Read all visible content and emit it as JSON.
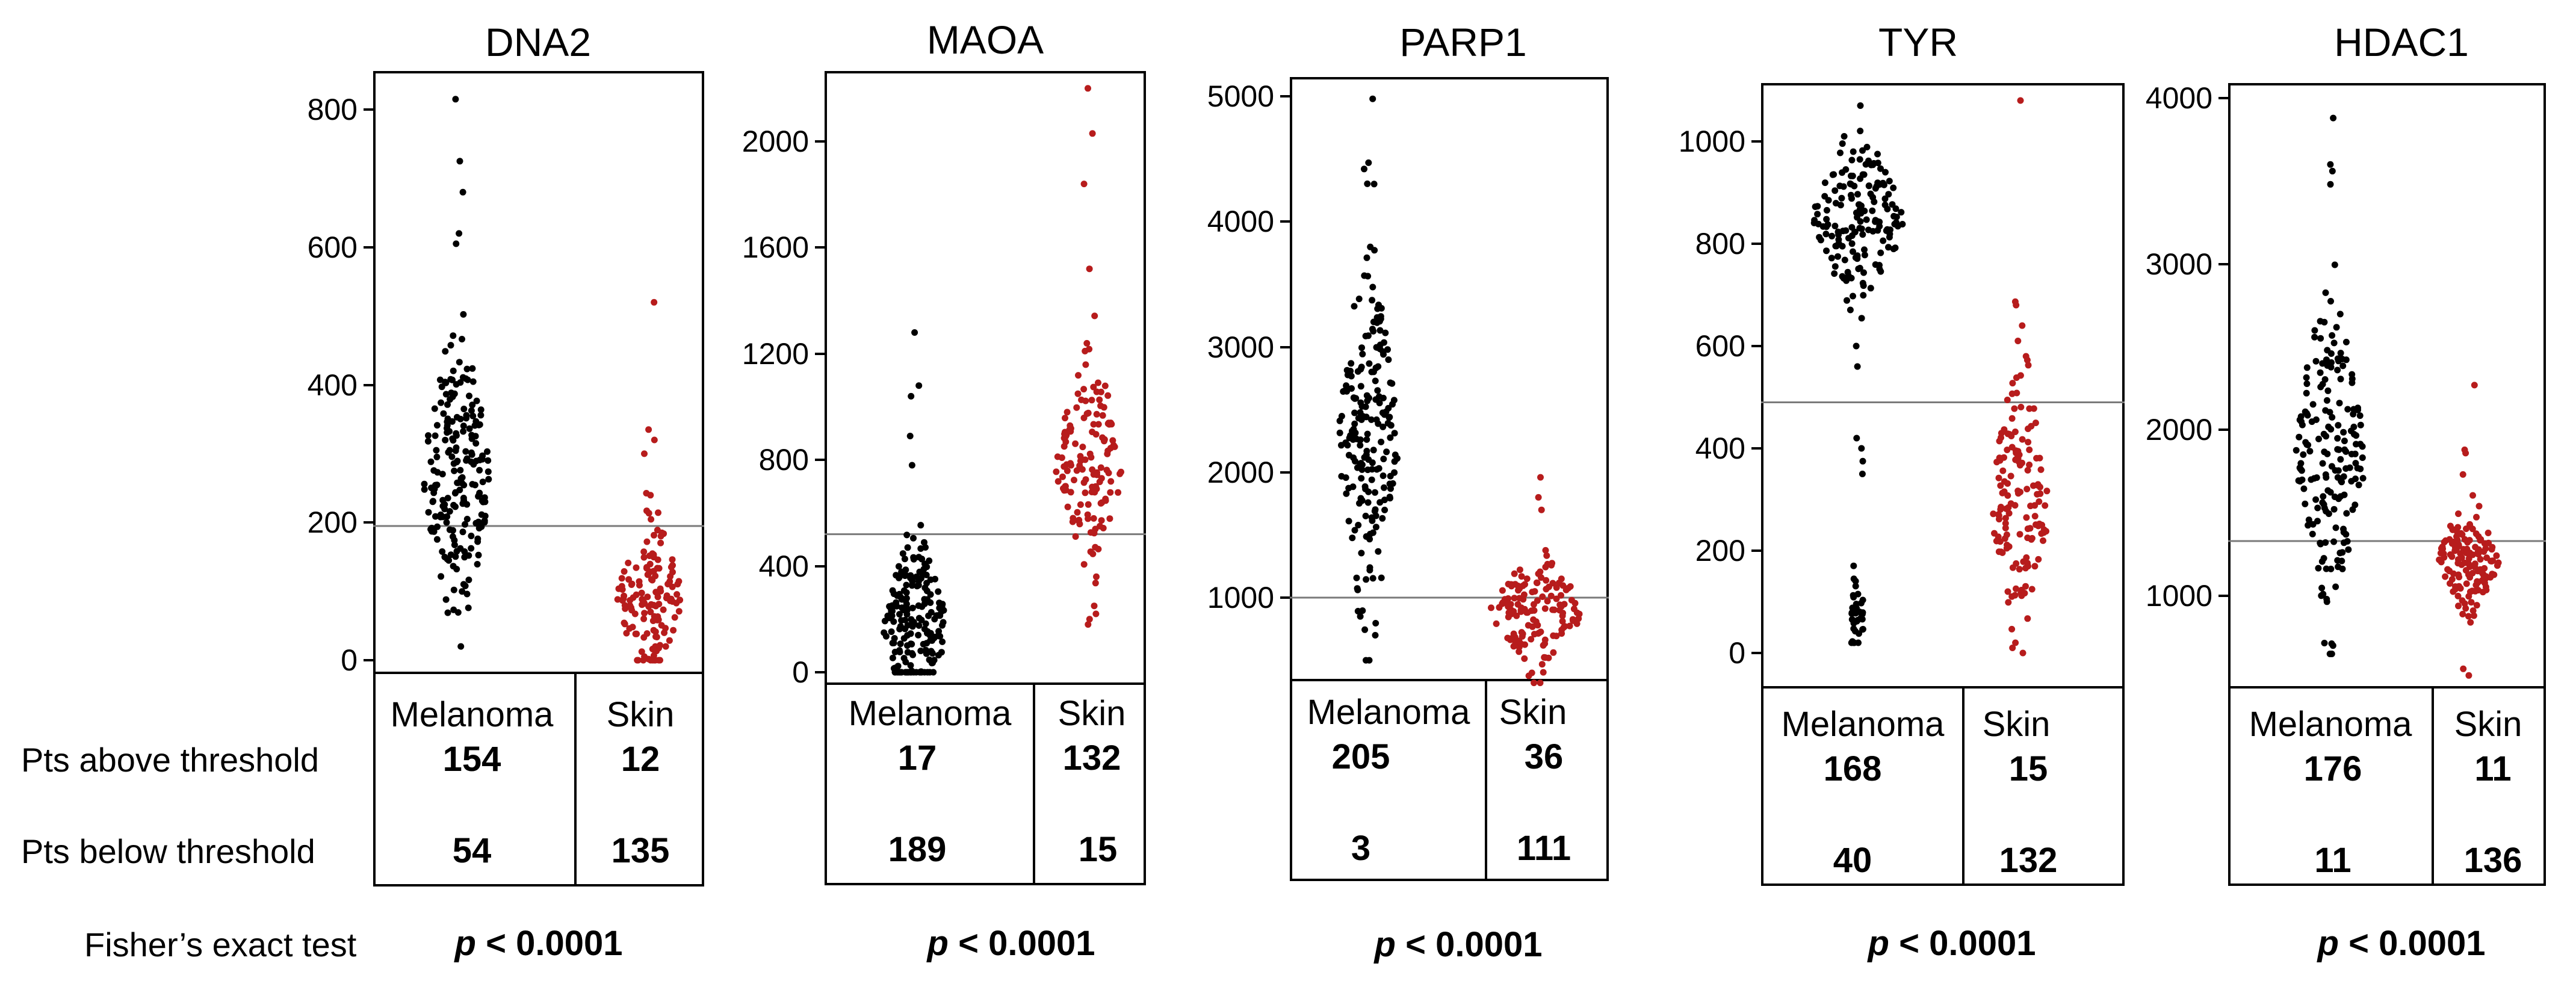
{
  "row_labels": {
    "above": "Pts above threshold",
    "below": "Pts below threshold",
    "test": "Fisher’s exact test"
  },
  "colors": {
    "melanoma": "#000000",
    "skin": "#b71c1c",
    "threshold": "#7a7a7a"
  },
  "chart_data": [
    {
      "type": "scatter",
      "title": "DNA2",
      "yticks": [
        "0",
        "200",
        "400",
        "600",
        "800"
      ],
      "ylim": [
        0,
        820
      ],
      "threshold": 195,
      "groups": [
        {
          "name": "Melanoma",
          "above": "154",
          "below": "54",
          "n": 208,
          "median": 265,
          "spread": 95,
          "max": 815,
          "min": 20,
          "extremes": [
            815,
            725,
            680,
            620,
            605
          ]
        },
        {
          "name": "Skin",
          "above": "12",
          "below": "135",
          "n": 147,
          "median": 90,
          "spread": 55,
          "max": 520,
          "min": 0,
          "extremes": [
            520,
            335,
            320,
            300
          ]
        }
      ],
      "p_prefix": "p",
      "p_rest": " < 0.0001"
    },
    {
      "type": "scatter",
      "title": "MAOA",
      "yticks": [
        "0",
        "400",
        "800",
        "1200",
        "1600",
        "2000"
      ],
      "ylim": [
        0,
        2200
      ],
      "threshold": 520,
      "groups": [
        {
          "name": "Melanoma",
          "above": "17",
          "below": "189",
          "n": 206,
          "median": 180,
          "spread": 140,
          "max": 1280,
          "min": 0,
          "extremes": [
            1280,
            1080,
            1040,
            890,
            780
          ]
        },
        {
          "name": "Skin",
          "above": "132",
          "below": "15",
          "n": 147,
          "median": 790,
          "spread": 180,
          "max": 2200,
          "min": 160,
          "extremes": [
            2200,
            2030,
            1840,
            1520,
            1210,
            180,
            200,
            220
          ]
        }
      ],
      "p_prefix": "p",
      "p_rest": " < 0.0001"
    },
    {
      "type": "scatter",
      "title": "PARP1",
      "yticks": [
        "1000",
        "2000",
        "3000",
        "4000",
        "5000"
      ],
      "ylim": [
        300,
        5000
      ],
      "threshold": 1000,
      "groups": [
        {
          "name": "Melanoma",
          "above": "205",
          "below": "3",
          "n": 208,
          "median": 2250,
          "spread": 650,
          "max": 4980,
          "min": 500,
          "extremes": [
            4980,
            4470,
            4420,
            4300,
            850,
            700,
            500
          ]
        },
        {
          "name": "Skin",
          "above": "36",
          "below": "111",
          "n": 147,
          "median": 900,
          "spread": 200,
          "max": 1960,
          "min": 320,
          "extremes": [
            1960,
            1800,
            1700,
            320,
            400
          ]
        }
      ],
      "p_prefix": "p",
      "p_rest": " < 0.0001"
    },
    {
      "type": "scatter",
      "title": "TYR",
      "yticks": [
        "0",
        "200",
        "400",
        "600",
        "800",
        "1000"
      ],
      "ylim": [
        -60,
        1090
      ],
      "threshold": 490,
      "groups": [
        {
          "name": "Melanoma",
          "above": "168",
          "below": "40",
          "n": 208,
          "median": 850,
          "spread": 80,
          "max": 1070,
          "min": 20,
          "extremes": [
            1070,
            1010,
            600,
            560,
            420,
            400,
            375,
            350
          ],
          "cluster2": {
            "n": 36,
            "median": 75,
            "spread": 40
          }
        },
        {
          "name": "Skin",
          "above": "15",
          "below": "132",
          "n": 147,
          "median": 300,
          "spread": 110,
          "max": 1080,
          "min": 0,
          "extremes": [
            1080,
            680,
            640,
            610,
            580,
            0,
            10,
            20
          ]
        }
      ],
      "p_prefix": "p",
      "p_rest": " < 0.0001"
    },
    {
      "type": "scatter",
      "title": "HDAC1",
      "yticks": [
        "1000",
        "2000",
        "3000",
        "4000"
      ],
      "ylim": [
        520,
        4020
      ],
      "threshold": 1330,
      "groups": [
        {
          "name": "Melanoma",
          "above": "176",
          "below": "11",
          "n": 187,
          "median": 1900,
          "spread": 420,
          "max": 3880,
          "min": 650,
          "extremes": [
            3880,
            3600,
            3560,
            3480,
            700,
            650
          ]
        },
        {
          "name": "Skin",
          "above": "11",
          "below": "136",
          "n": 147,
          "median": 1230,
          "spread": 150,
          "max": 2270,
          "min": 520,
          "extremes": [
            2270,
            1880,
            1860,
            560,
            520
          ]
        }
      ],
      "p_prefix": "p",
      "p_rest": " < 0.0001"
    }
  ]
}
